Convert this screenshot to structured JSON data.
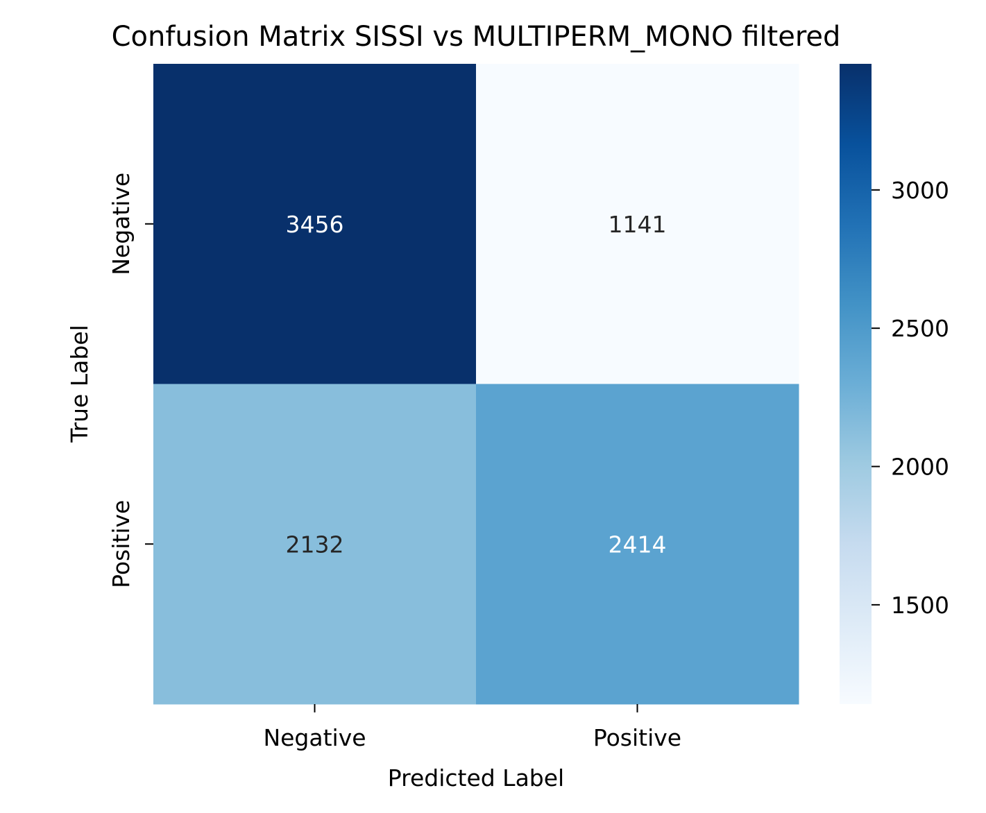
{
  "chart_data": {
    "type": "heatmap",
    "title": "Confusion Matrix SISSI vs MULTIPERM_MONO filtered",
    "xlabel": "Predicted Label",
    "ylabel": "True Label",
    "x_categories": [
      "Negative",
      "Positive"
    ],
    "y_categories": [
      "Negative",
      "Positive"
    ],
    "values": [
      [
        3456,
        1141
      ],
      [
        2132,
        2414
      ]
    ],
    "colormap": "Blues",
    "colorbar": {
      "range": [
        1141,
        3456
      ],
      "ticks": [
        1500,
        2000,
        2500,
        3000
      ],
      "tick_labels": [
        "1500",
        "2000",
        "2500",
        "3000"
      ]
    },
    "cell_text_colors": {
      "dark_bg": "#ffffff",
      "light_bg": "#262626"
    }
  }
}
